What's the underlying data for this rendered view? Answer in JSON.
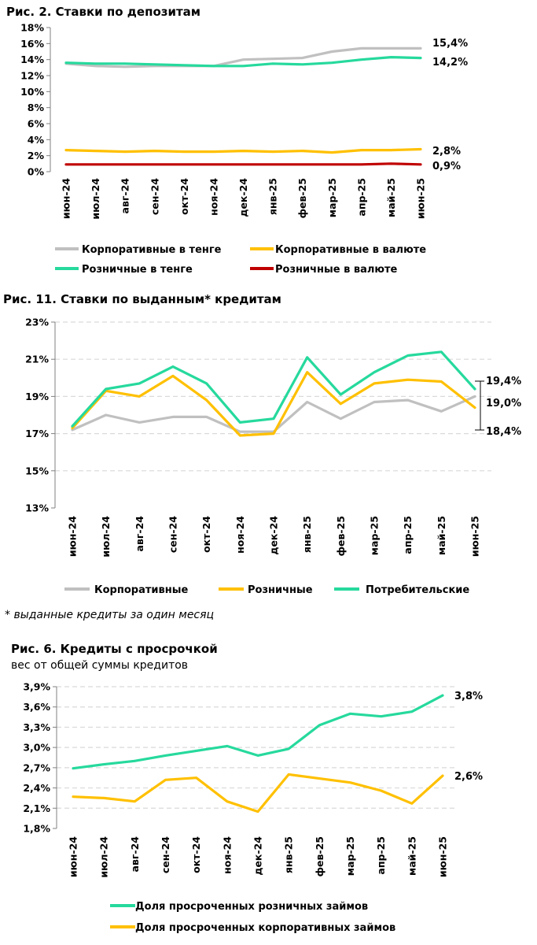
{
  "colors": {
    "corp_kzt": "#c0c0c0",
    "corp_fx": "#ffc000",
    "retail_kzt": "#26d99d",
    "retail_fx": "#c00000",
    "grid": "#d9d9d9"
  },
  "months": [
    "июн-24",
    "июл-24",
    "авг-24",
    "сен-24",
    "окт-24",
    "ноя-24",
    "дек-24",
    "янв-25",
    "фев-25",
    "мар-25",
    "апр-25",
    "май-25",
    "июн-25"
  ],
  "chart_data": [
    {
      "id": "deposits",
      "type": "line",
      "title": "Рис. 2. Ставки по депозитам",
      "ylim": [
        0,
        18
      ],
      "yticks": [
        "0%",
        "2%",
        "4%",
        "6%",
        "8%",
        "10%",
        "12%",
        "14%",
        "16%",
        "18%"
      ],
      "series": [
        {
          "name": "Корпоративные в тенге",
          "color": "#c0c0c0",
          "values": [
            13.5,
            13.2,
            13.1,
            13.2,
            13.2,
            13.2,
            14.0,
            14.1,
            14.2,
            15.0,
            15.4,
            15.4,
            15.4
          ]
        },
        {
          "name": "Корпоративные в валюте",
          "color": "#ffc000",
          "values": [
            2.7,
            2.6,
            2.5,
            2.6,
            2.5,
            2.5,
            2.6,
            2.5,
            2.6,
            2.4,
            2.7,
            2.7,
            2.8
          ]
        },
        {
          "name": "Розничные в тенге",
          "color": "#26d99d",
          "values": [
            13.6,
            13.5,
            13.5,
            13.4,
            13.3,
            13.2,
            13.2,
            13.5,
            13.4,
            13.6,
            14.0,
            14.3,
            14.2
          ]
        },
        {
          "name": "Розничные в валюте",
          "color": "#c00000",
          "values": [
            0.9,
            0.9,
            0.9,
            0.9,
            0.9,
            0.9,
            0.9,
            0.9,
            0.9,
            0.9,
            0.9,
            1.0,
            0.9
          ]
        }
      ],
      "end_labels": [
        "15,4%",
        "14,2%",
        "2,8%",
        "0,9%"
      ]
    },
    {
      "id": "loans",
      "type": "line",
      "title": "Рис. 11. Ставки по выданным* кредитам",
      "ylim": [
        13,
        23
      ],
      "yticks": [
        "13%",
        "15%",
        "17%",
        "19%",
        "21%",
        "23%"
      ],
      "series": [
        {
          "name": "Корпоративные",
          "color": "#c0c0c0",
          "values": [
            17.2,
            18.0,
            17.6,
            17.9,
            17.9,
            17.1,
            17.1,
            18.7,
            17.8,
            18.7,
            18.8,
            18.2,
            19.0
          ]
        },
        {
          "name": "Розничные",
          "color": "#ffc000",
          "values": [
            17.3,
            19.3,
            19.0,
            20.1,
            18.8,
            16.9,
            17.0,
            20.3,
            18.6,
            19.7,
            19.9,
            19.8,
            18.4
          ]
        },
        {
          "name": "Потребительские",
          "color": "#26d99d",
          "values": [
            17.4,
            19.4,
            19.7,
            20.6,
            19.7,
            17.6,
            17.8,
            21.1,
            19.1,
            20.3,
            21.2,
            21.4,
            19.4
          ]
        }
      ],
      "end_labels": [
        "19,4%",
        "19,0%",
        "18,4%"
      ],
      "footnote": "* выданные кредиты за один месяц"
    },
    {
      "id": "npl",
      "type": "line",
      "title": "Рис. 6. Кредиты с просрочкой",
      "subtitle": "вес от общей суммы кредитов",
      "ylim": [
        1.8,
        3.9
      ],
      "yticks": [
        "1,8%",
        "2,1%",
        "2,4%",
        "2,7%",
        "3,0%",
        "3,3%",
        "3,6%",
        "3,9%"
      ],
      "series": [
        {
          "name": "Доля просроченных розничных займов",
          "color": "#26d99d",
          "values": [
            2.69,
            2.75,
            2.8,
            2.88,
            2.95,
            3.02,
            2.88,
            2.98,
            3.33,
            3.5,
            3.46,
            3.53,
            3.77
          ]
        },
        {
          "name": "Доля просроченных корпоративных займов",
          "color": "#ffc000",
          "values": [
            2.27,
            2.25,
            2.2,
            2.52,
            2.55,
            2.2,
            2.05,
            2.6,
            2.54,
            2.48,
            2.36,
            2.17,
            2.58
          ]
        }
      ],
      "end_labels": [
        "3,8%",
        "2,6%"
      ]
    }
  ]
}
